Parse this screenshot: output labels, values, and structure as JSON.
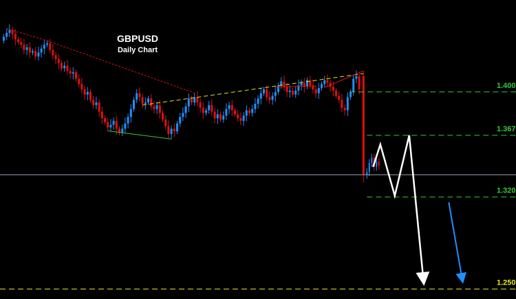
{
  "chart_data": {
    "type": "candlestick",
    "title": "GBPUSD",
    "subtitle": "Daily Chart",
    "xlabel": "",
    "ylabel": "",
    "ylim": [
      1.245,
      1.47
    ],
    "grid": false,
    "colors": {
      "background": "#000000",
      "bull_candle": "#1e90ff",
      "bear_candle": "#e01010",
      "support_level": "#33cc33",
      "mid_level": "#cc3333",
      "target_level": "#e6e61a",
      "forecast_path": "#ffffff",
      "forecast_arrow_blue": "#1e90ff",
      "current_price_line": "#b4bccc"
    },
    "series_closes": [
      1.442,
      1.445,
      1.447,
      1.444,
      1.44,
      1.438,
      1.436,
      1.432,
      1.434,
      1.43,
      1.431,
      1.427,
      1.43,
      1.433,
      1.436,
      1.437,
      1.432,
      1.428,
      1.425,
      1.422,
      1.418,
      1.42,
      1.416,
      1.414,
      1.415,
      1.41,
      1.406,
      1.402,
      1.398,
      1.4,
      1.394,
      1.39,
      1.392,
      1.385,
      1.38,
      1.377,
      1.373,
      1.375,
      1.378,
      1.372,
      1.369,
      1.372,
      1.376,
      1.381,
      1.387,
      1.394,
      1.399,
      1.396,
      1.391,
      1.392,
      1.395,
      1.389,
      1.387,
      1.39,
      1.384,
      1.379,
      1.374,
      1.368,
      1.372,
      1.37,
      1.376,
      1.381,
      1.384,
      1.389,
      1.395,
      1.392,
      1.396,
      1.392,
      1.388,
      1.384,
      1.386,
      1.39,
      1.385,
      1.38,
      1.383,
      1.379,
      1.382,
      1.387,
      1.39,
      1.386,
      1.383,
      1.38,
      1.378,
      1.382,
      1.386,
      1.384,
      1.387,
      1.391,
      1.395,
      1.399,
      1.402,
      1.396,
      1.394,
      1.397,
      1.4,
      1.405,
      1.408,
      1.404,
      1.4,
      1.401,
      1.398,
      1.401,
      1.405,
      1.407,
      1.404,
      1.409,
      1.405,
      1.402,
      1.399,
      1.403,
      1.406,
      1.409,
      1.407,
      1.404,
      1.401,
      1.397,
      1.394,
      1.388,
      1.386,
      1.396,
      1.4,
      1.41,
      1.412,
      1.402
    ],
    "crash_candle": {
      "open": 1.412,
      "close": 1.337,
      "high": 1.416,
      "low": 1.331
    },
    "post_candles": [
      1.339,
      1.346,
      1.35,
      1.343,
      1.347,
      1.344
    ],
    "levels": [
      {
        "value": 1.4,
        "label": "1.400",
        "color": "#33cc33"
      },
      {
        "value": 1.367,
        "label": "1.367",
        "color": "#33cc33"
      },
      {
        "value": 1.32,
        "label": "1.320",
        "color": "#33cc33"
      },
      {
        "value": 1.25,
        "label": "1.250",
        "color": "#e6e61a"
      }
    ],
    "current_price": 1.337,
    "forecast_path": [
      [
        0,
        1.343
      ],
      [
        1,
        1.36
      ],
      [
        3,
        1.321
      ],
      [
        5,
        1.367
      ],
      [
        7,
        1.255
      ]
    ],
    "forecast_arrow_blue": {
      "from": [
        0,
        1.316
      ],
      "to": [
        2,
        1.256
      ]
    }
  }
}
